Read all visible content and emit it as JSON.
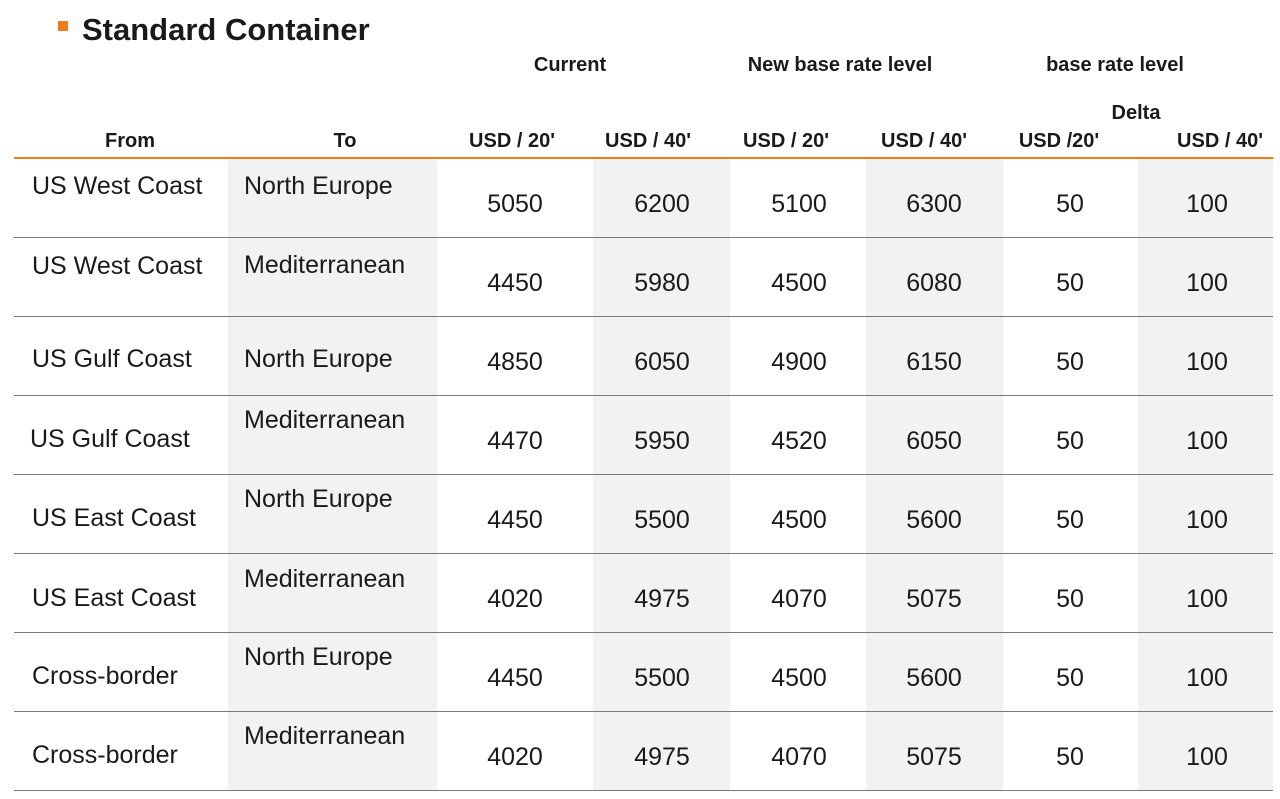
{
  "title": "Standard Container",
  "groups": {
    "current": "Current",
    "new_base": "New base rate level",
    "base_rate": "base rate level",
    "delta": "Delta"
  },
  "columns": {
    "from": "From",
    "to": "To",
    "cur20": "USD / 20'",
    "cur40": "USD / 40'",
    "new20": "USD / 20'",
    "new40": "USD / 40'",
    "delta20": "USD /20'",
    "delta40": "USD / 40'"
  },
  "rows": [
    {
      "from": "US West Coast",
      "to": "North Europe",
      "cur20": "5050",
      "cur40": "6200",
      "new20": "5100",
      "new40": "6300",
      "d20": "50",
      "d40": "100"
    },
    {
      "from": "US West Coast",
      "to": "Mediterranean",
      "cur20": "4450",
      "cur40": "5980",
      "new20": "4500",
      "new40": "6080",
      "d20": "50",
      "d40": "100"
    },
    {
      "from": "US Gulf Coast",
      "to": "North Europe",
      "cur20": "4850",
      "cur40": "6050",
      "new20": "4900",
      "new40": "6150",
      "d20": "50",
      "d40": "100"
    },
    {
      "from": "US Gulf Coast",
      "to": "Mediterranean",
      "cur20": "4470",
      "cur40": "5950",
      "new20": "4520",
      "new40": "6050",
      "d20": "50",
      "d40": "100"
    },
    {
      "from": "US East Coast",
      "to": "North Europe",
      "cur20": "4450",
      "cur40": "5500",
      "new20": "4500",
      "new40": "5600",
      "d20": "50",
      "d40": "100"
    },
    {
      "from": "US East Coast",
      "to": "Mediterranean",
      "cur20": "4020",
      "cur40": "4975",
      "new20": "4070",
      "new40": "5075",
      "d20": "50",
      "d40": "100"
    },
    {
      "from": "Cross-border",
      "to": "North Europe",
      "cur20": "4450",
      "cur40": "5500",
      "new20": "4500",
      "new40": "5600",
      "d20": "50",
      "d40": "100"
    },
    {
      "from": "Cross-border",
      "to": "Mediterranean",
      "cur20": "4020",
      "cur40": "4975",
      "new20": "4070",
      "new40": "5075",
      "d20": "50",
      "d40": "100"
    }
  ],
  "colors": {
    "accent": "#f07d1a",
    "shade": "#f2f2f2",
    "rule": "#7a7a7a"
  }
}
